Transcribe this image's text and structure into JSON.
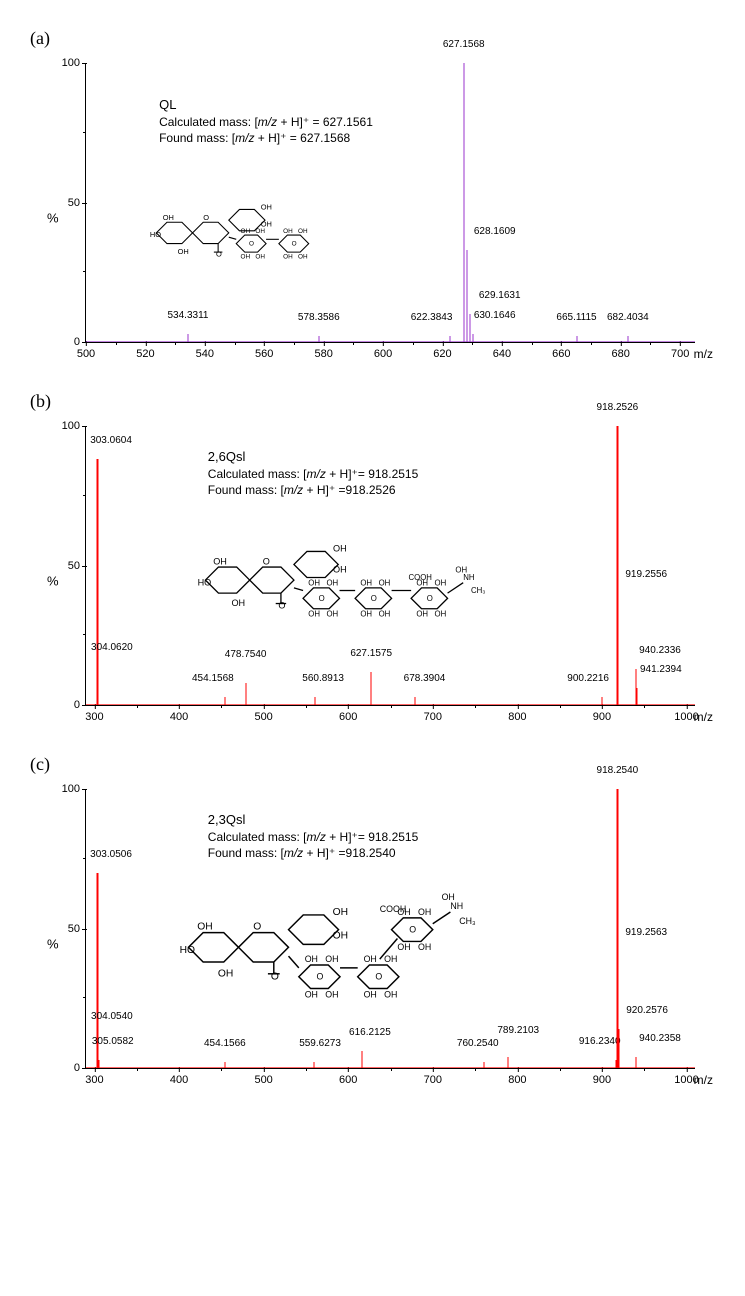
{
  "global": {
    "y_label": "%",
    "x_label": "m/z",
    "background_color": "#ffffff",
    "axis_color": "#000000",
    "tick_fontsize": 11,
    "label_fontsize": 13,
    "peak_label_fontsize": 10,
    "info_fontsize": 12,
    "structure_stroke": "#000000"
  },
  "panels": [
    {
      "key": "a",
      "label": "(a)",
      "xlim": [
        500,
        705
      ],
      "ylim": [
        0,
        100
      ],
      "xtick_step": 20,
      "xtick_minor_step": 10,
      "ytick_step": 50,
      "ytick_minor_step": 25,
      "peak_color": "#9933cc",
      "info": {
        "title": "QL",
        "calc_label": "Calculated mass: [m/z + H]⁺ = 627.1561",
        "found_label": "Found mass: [m/z + H]⁺ = 627.1568",
        "left_pct": 12,
        "top_pct": 12
      },
      "structure": {
        "left_pct": 8,
        "top_pct": 38,
        "width_pct": 42,
        "height_pct": 42,
        "variant": "ql"
      },
      "peaks": [
        {
          "mz": 534.3311,
          "intensity": 3,
          "label": "534.3311",
          "label_dy": -2
        },
        {
          "mz": 578.3586,
          "intensity": 2,
          "label": "578.3586",
          "label_dy": -2
        },
        {
          "mz": 622.3843,
          "intensity": 2,
          "label": "622.3843",
          "label_dy": -2,
          "label_dx": -18
        },
        {
          "mz": 627.1568,
          "intensity": 100,
          "label": "627.1568",
          "label_dy": -2
        },
        {
          "mz": 628.1609,
          "intensity": 33,
          "label": "628.1609",
          "label_dy": -2,
          "label_dx": 28
        },
        {
          "mz": 629.1631,
          "intensity": 10,
          "label": "629.1631",
          "label_dy": -2,
          "label_dx": 30
        },
        {
          "mz": 630.1646,
          "intensity": 3,
          "label": "630.1646",
          "label_dy": -2,
          "label_dx": 22
        },
        {
          "mz": 665.1115,
          "intensity": 2,
          "label": "665.1115",
          "label_dy": -2
        },
        {
          "mz": 682.4034,
          "intensity": 2,
          "label": "682.4034",
          "label_dy": -2
        }
      ]
    },
    {
      "key": "b",
      "label": "(b)",
      "xlim": [
        290,
        1010
      ],
      "ylim": [
        0,
        100
      ],
      "xtick_step": 100,
      "xtick_minor_step": 50,
      "ytick_step": 50,
      "ytick_minor_step": 25,
      "peak_color": "#ff0000",
      "info": {
        "title": "2,6Qsl",
        "calc_label": "Calculated mass: [m/z + H]⁺= 918.2515",
        "found_label": "Found mass: [m/z + H]⁺ =918.2526",
        "left_pct": 20,
        "top_pct": 8
      },
      "structure": {
        "left_pct": 12,
        "top_pct": 32,
        "width_pct": 58,
        "height_pct": 42,
        "variant": "qsl26"
      },
      "peaks": [
        {
          "mz": 303.0604,
          "intensity": 88,
          "label": "303.0604",
          "label_dy": -2,
          "label_dx": 14
        },
        {
          "mz": 304.062,
          "intensity": 14,
          "label": "304.0620",
          "label_dy": -2,
          "label_dx": 14
        },
        {
          "mz": 454.1568,
          "intensity": 3,
          "label": "454.1568",
          "label_dy": -2,
          "label_dx": -12
        },
        {
          "mz": 478.754,
          "intensity": 8,
          "label": "478.7540",
          "label_dy": -12
        },
        {
          "mz": 560.8913,
          "intensity": 3,
          "label": "560.8913",
          "label_dy": -2,
          "label_dx": 8
        },
        {
          "mz": 627.1575,
          "intensity": 12,
          "label": "627.1575",
          "label_dy": -2
        },
        {
          "mz": 678.3904,
          "intensity": 3,
          "label": "678.3904",
          "label_dy": -2,
          "label_dx": 10
        },
        {
          "mz": 900.2216,
          "intensity": 3,
          "label": "900.2216",
          "label_dy": -2,
          "label_dx": -14
        },
        {
          "mz": 918.2526,
          "intensity": 100,
          "label": "918.2526",
          "label_dy": -2
        },
        {
          "mz": 919.2556,
          "intensity": 40,
          "label": "919.2556",
          "label_dy": -2,
          "label_dx": 28
        },
        {
          "mz": 940.2336,
          "intensity": 13,
          "label": "940.2336",
          "label_dy": -2,
          "label_dx": 24
        },
        {
          "mz": 941.2394,
          "intensity": 6,
          "label": "941.2394",
          "label_dy": -2,
          "label_dx": 24
        }
      ]
    },
    {
      "key": "c",
      "label": "(c)",
      "xlim": [
        290,
        1010
      ],
      "ylim": [
        0,
        100
      ],
      "xtick_step": 100,
      "xtick_minor_step": 50,
      "ytick_step": 50,
      "ytick_minor_step": 25,
      "peak_color": "#ff0000",
      "info": {
        "title": "2,3Qsl",
        "calc_label": "Calculated mass: [m/z + H]⁺= 918.2515",
        "found_label": "Found mass: [m/z + H]⁺ =918.2540",
        "left_pct": 20,
        "top_pct": 8
      },
      "structure": {
        "left_pct": 12,
        "top_pct": 30,
        "width_pct": 58,
        "height_pct": 48,
        "variant": "qsl23"
      },
      "peaks": [
        {
          "mz": 303.0506,
          "intensity": 70,
          "label": "303.0506",
          "label_dy": -2,
          "label_dx": 14
        },
        {
          "mz": 304.054,
          "intensity": 12,
          "label": "304.0540",
          "label_dy": -2,
          "label_dx": 14
        },
        {
          "mz": 305.0582,
          "intensity": 3,
          "label": "305.0582",
          "label_dy": -2,
          "label_dx": 14
        },
        {
          "mz": 454.1566,
          "intensity": 2,
          "label": "454.1566",
          "label_dy": -2
        },
        {
          "mz": 559.6273,
          "intensity": 2,
          "label": "559.6273",
          "label_dy": -2,
          "label_dx": 6
        },
        {
          "mz": 616.2125,
          "intensity": 6,
          "label": "616.2125",
          "label_dy": -2,
          "label_dx": 8
        },
        {
          "mz": 760.254,
          "intensity": 2,
          "label": "760.2540",
          "label_dy": -2,
          "label_dx": -6
        },
        {
          "mz": 789.2103,
          "intensity": 4,
          "label": "789.2103",
          "label_dy": -10,
          "label_dx": 10
        },
        {
          "mz": 916.234,
          "intensity": 3,
          "label": "916.2340",
          "label_dy": -2,
          "label_dx": -16
        },
        {
          "mz": 918.254,
          "intensity": 100,
          "label": "918.2540",
          "label_dy": -2
        },
        {
          "mz": 919.2563,
          "intensity": 42,
          "label": "919.2563",
          "label_dy": -2,
          "label_dx": 28
        },
        {
          "mz": 920.2576,
          "intensity": 14,
          "label": "920.2576",
          "label_dy": -2,
          "label_dx": 28
        },
        {
          "mz": 940.2358,
          "intensity": 4,
          "label": "940.2358",
          "label_dy": -2,
          "label_dx": 24
        }
      ]
    }
  ]
}
